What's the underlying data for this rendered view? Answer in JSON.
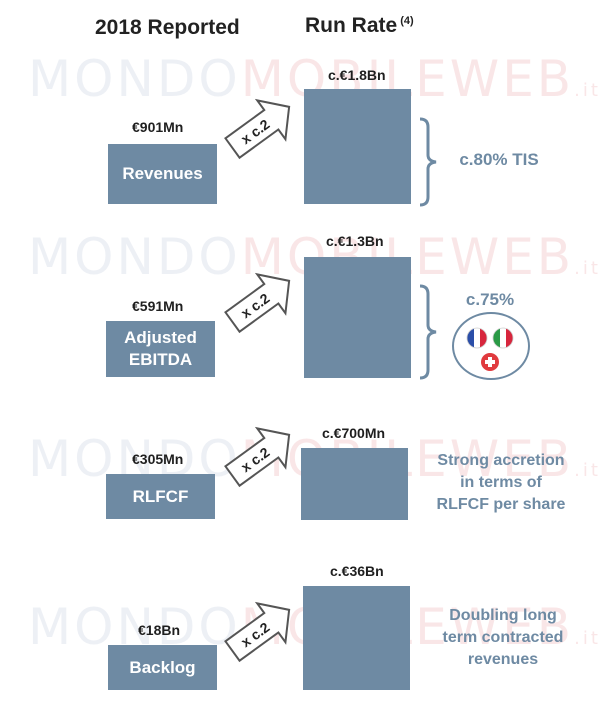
{
  "header": {
    "left_title": "2018 Reported",
    "right_title": "Run Rate",
    "right_footnote": "(4)"
  },
  "watermark": {
    "part1": "MONDO",
    "part2": "MOBILEWEB",
    "suffix": ".it"
  },
  "rows": [
    {
      "reported_value": "€901Mn",
      "reported_label": "Revenues",
      "multiplier": "x c.2",
      "runrate_value": "c.€1.8Bn",
      "note": "c.80% TIS"
    },
    {
      "reported_value": "€591Mn",
      "reported_label_line1": "Adjusted",
      "reported_label_line2": "EBITDA",
      "multiplier": "x c.2",
      "runrate_value": "c.€1.3Bn",
      "note": "c.75%"
    },
    {
      "reported_value": "€305Mn",
      "reported_label": "RLFCF",
      "multiplier": "x c.2",
      "runrate_value": "c.€700Mn",
      "note_line1": "Strong accretion",
      "note_line2": "in terms of",
      "note_line3": "RLFCF per share"
    },
    {
      "reported_value": "€18Bn",
      "reported_label": "Backlog",
      "multiplier": "x c.2",
      "runrate_value": "c.€36Bn",
      "note_line1": "Doubling long",
      "note_line2": "term contracted",
      "note_line3": "revenues"
    }
  ],
  "colors": {
    "box": "#6e8aa3",
    "note_text": "#6e8aa3",
    "watermark_blue": "#7d8fb5",
    "watermark_red": "#d9484f"
  }
}
